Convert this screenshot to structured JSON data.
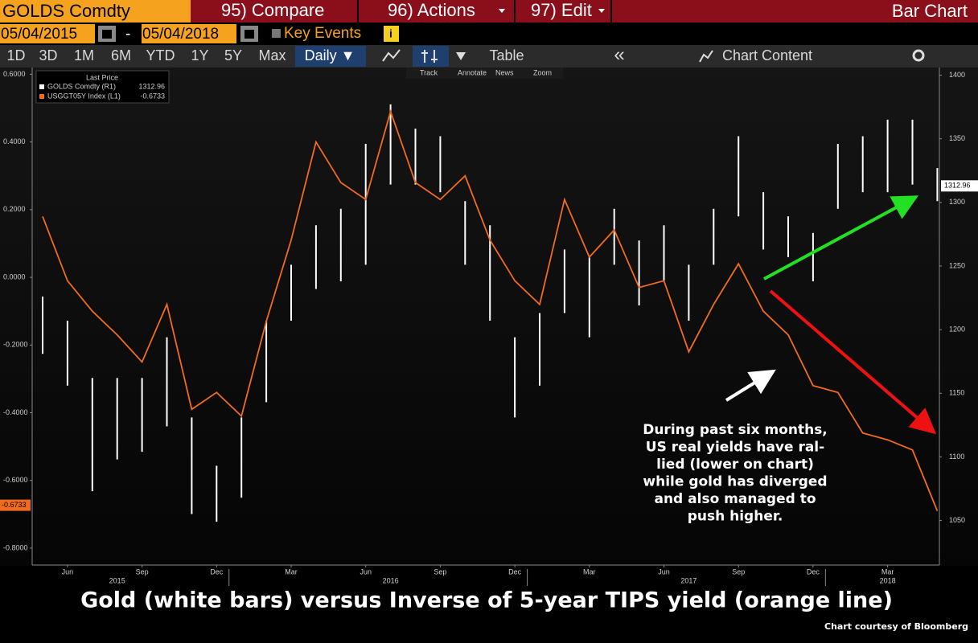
{
  "toolbar": {
    "security": "GOLDS Comdty",
    "compare": "95) Compare",
    "actions": "96) Actions",
    "edit": "97) Edit",
    "function": "Bar Chart",
    "start_date": "05/04/2015",
    "date_separator": "-",
    "end_date": "05/04/2018",
    "key_events": "Key Events",
    "periods": [
      "1D",
      "3D",
      "1M",
      "6M",
      "YTD",
      "1Y",
      "5Y",
      "Max"
    ],
    "frequency": "Daily ▼",
    "table": "Table",
    "chart_content": "Chart Content",
    "chart_tools": [
      "Track",
      "Annotate",
      "News",
      "Zoom"
    ]
  },
  "chart_data": {
    "type": "combo",
    "title": "Gold (white bars) versus Inverse of 5-year TIPS yield (orange line)",
    "source": "Chart courtesy of Bloomberg",
    "legend_title": "Last Price",
    "x": [
      "2015-05",
      "2015-06",
      "2015-07",
      "2015-08",
      "2015-09",
      "2015-10",
      "2015-11",
      "2015-12",
      "2016-01",
      "2016-02",
      "2016-03",
      "2016-04",
      "2016-05",
      "2016-06",
      "2016-07",
      "2016-08",
      "2016-09",
      "2016-10",
      "2016-11",
      "2016-12",
      "2017-01",
      "2017-02",
      "2017-03",
      "2017-04",
      "2017-05",
      "2017-06",
      "2017-07",
      "2017-08",
      "2017-09",
      "2017-10",
      "2017-11",
      "2017-12",
      "2018-01",
      "2018-02",
      "2018-03",
      "2018-04",
      "2018-05"
    ],
    "xticks": [
      {
        "value": "2015-06",
        "label": "Jun"
      },
      {
        "value": "2015-09",
        "label": "Sep"
      },
      {
        "value": "2015-12",
        "label": "Dec"
      },
      {
        "value": "2016-03",
        "label": "Mar"
      },
      {
        "value": "2016-06",
        "label": "Jun"
      },
      {
        "value": "2016-09",
        "label": "Sep"
      },
      {
        "value": "2016-12",
        "label": "Dec"
      },
      {
        "value": "2017-03",
        "label": "Mar"
      },
      {
        "value": "2017-06",
        "label": "Jun"
      },
      {
        "value": "2017-09",
        "label": "Sep"
      },
      {
        "value": "2017-12",
        "label": "Dec"
      },
      {
        "value": "2018-03",
        "label": "Mar"
      }
    ],
    "xyears": [
      {
        "value": "2015-08",
        "label": "2015"
      },
      {
        "value": "2016-07",
        "label": "2016"
      },
      {
        "value": "2017-07",
        "label": "2017"
      },
      {
        "value": "2018-03",
        "label": "2018"
      }
    ],
    "ylim": [
      -0.85,
      0.62
    ],
    "yticks": [
      {
        "value": 0.6,
        "label": "0.6000"
      },
      {
        "value": 0.4,
        "label": "0.4000"
      },
      {
        "value": 0.2,
        "label": "0.2000"
      },
      {
        "value": 0,
        "label": "0.0000"
      },
      {
        "value": -0.2,
        "label": "-0.2000"
      },
      {
        "value": -0.4,
        "label": "-0.4000"
      },
      {
        "value": -0.6,
        "label": "-0.6000"
      },
      {
        "value": -0.8,
        "label": "-0.8000"
      }
    ],
    "y2lim": [
      1015,
      1406
    ],
    "y2ticks": [
      1050,
      1100,
      1150,
      1200,
      1250,
      1300,
      1350,
      1400
    ],
    "series": [
      {
        "name": "GOLDS Comdty (R1)",
        "type": "range_bar",
        "axis": "y2",
        "color": "#ffffff",
        "last_value": 1312.96,
        "high": [
          1226,
          1207,
          1162,
          1162,
          1162,
          1194,
          1131,
          1093,
          1131,
          1207,
          1251,
          1282,
          1295,
          1346,
          1377,
          1358,
          1352,
          1301,
          1282,
          1194,
          1213,
          1263,
          1257,
          1295,
          1270,
          1282,
          1251,
          1295,
          1352,
          1308,
          1289,
          1276,
          1346,
          1352,
          1365,
          1365,
          1327
        ],
        "low": [
          1181,
          1156,
          1073,
          1098,
          1104,
          1124,
          1055,
          1049,
          1068,
          1143,
          1207,
          1232,
          1238,
          1251,
          1314,
          1314,
          1308,
          1251,
          1207,
          1131,
          1156,
          1213,
          1194,
          1251,
          1219,
          1238,
          1207,
          1251,
          1289,
          1263,
          1257,
          1238,
          1295,
          1308,
          1308,
          1314,
          1301
        ]
      },
      {
        "name": "USGGT05Y Index (L1)",
        "type": "line",
        "color": "#f26b1d",
        "last_value": -0.6733,
        "values": [
          0.18,
          -0.01,
          -0.1,
          -0.17,
          -0.25,
          -0.08,
          -0.39,
          -0.34,
          -0.41,
          -0.13,
          0.11,
          0.4,
          0.28,
          0.23,
          0.49,
          0.28,
          0.23,
          0.3,
          0.11,
          -0.01,
          -0.08,
          0.23,
          0.06,
          0.14,
          -0.03,
          -0.01,
          -0.22,
          -0.08,
          0.04,
          -0.1,
          -0.17,
          -0.32,
          -0.34,
          -0.46,
          -0.48,
          -0.51,
          -0.69
        ]
      }
    ],
    "annotation": [
      "During past six months,",
      "US real yields have ral-",
      "lied (lower on chart)",
      "while gold has diverged",
      "and also managed to",
      "push higher."
    ]
  }
}
